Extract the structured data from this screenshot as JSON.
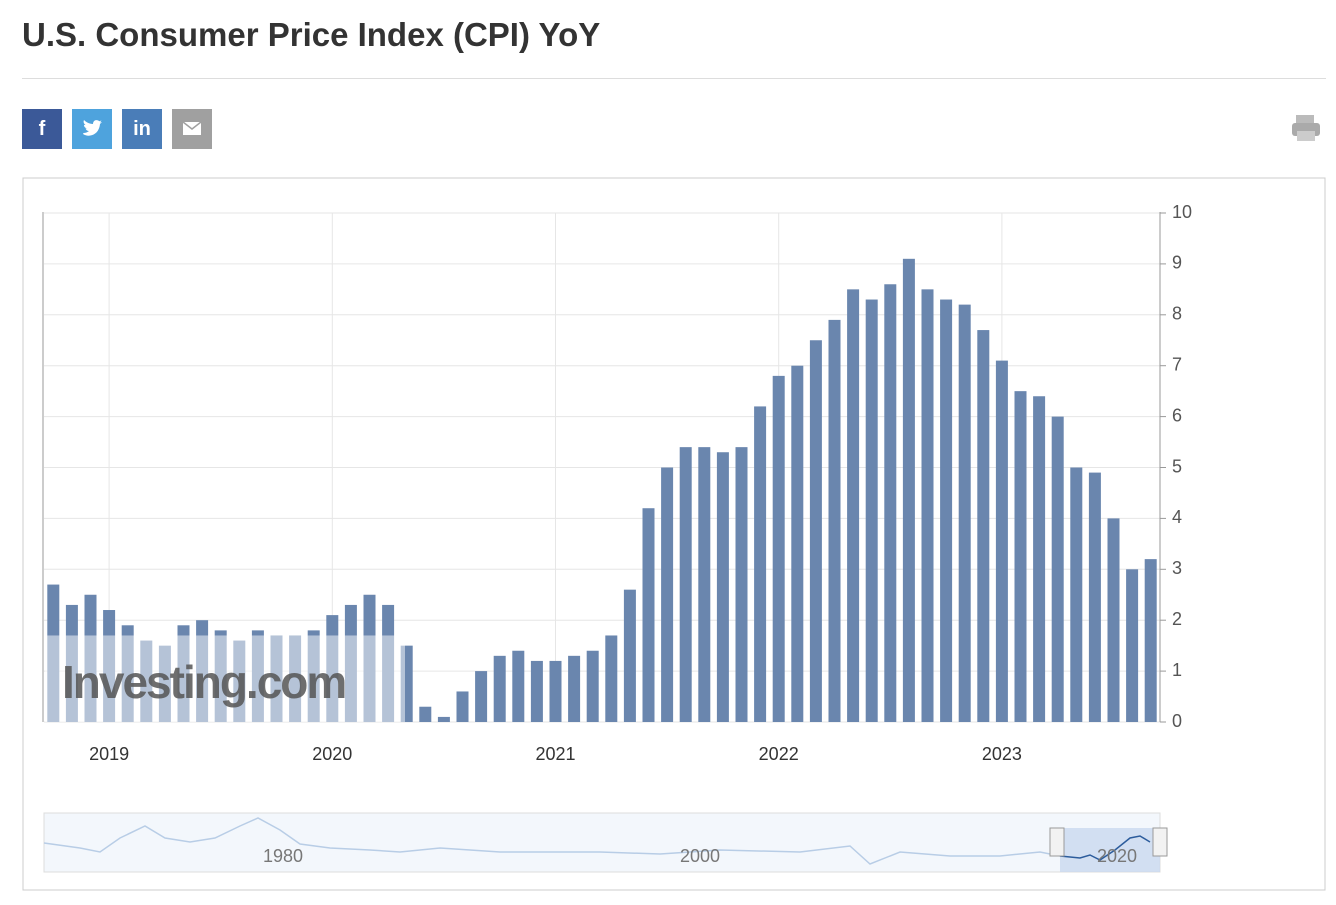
{
  "header": {
    "title": "U.S. Consumer Price Index (CPI) YoY",
    "share_buttons": [
      "f",
      "in"
    ]
  },
  "chart_data": {
    "type": "bar",
    "categories": [
      null,
      null,
      null,
      null,
      "2019",
      null,
      null,
      null,
      null,
      null,
      null,
      null,
      null,
      null,
      null,
      null,
      "2020",
      null,
      null,
      null,
      null,
      null,
      null,
      null,
      null,
      null,
      null,
      null,
      "2021",
      null,
      null,
      null,
      null,
      null,
      null,
      null,
      null,
      null,
      null,
      null,
      "2022",
      null,
      null,
      null,
      null,
      null,
      null,
      null,
      null,
      null,
      null,
      null,
      "2023",
      null,
      null,
      null,
      null,
      null,
      null,
      null
    ],
    "values": [
      2.7,
      2.3,
      2.5,
      2.2,
      1.9,
      1.6,
      1.5,
      1.9,
      2.0,
      1.8,
      1.6,
      1.8,
      1.7,
      1.7,
      1.8,
      2.1,
      2.3,
      2.5,
      2.3,
      1.5,
      0.3,
      0.1,
      0.6,
      1.0,
      1.3,
      1.4,
      1.2,
      1.2,
      1.3,
      1.4,
      1.7,
      2.6,
      4.2,
      5.0,
      5.4,
      5.4,
      5.3,
      5.4,
      6.2,
      6.8,
      7.0,
      7.5,
      7.9,
      8.5,
      8.3,
      8.6,
      9.1,
      8.5,
      8.3,
      8.2,
      7.7,
      7.1,
      6.5,
      6.4,
      6.0,
      5.0,
      4.9,
      4.0,
      3.0,
      3.2
    ],
    "color": "#6a86ae",
    "ylim": [
      0,
      10
    ],
    "yticks": [
      0,
      1,
      2,
      3,
      4,
      5,
      6,
      7,
      8,
      9,
      10
    ],
    "grid": true,
    "watermark": "Investing.com"
  },
  "navigator": {
    "labels": [
      "1980",
      "2000",
      "2020"
    ]
  }
}
